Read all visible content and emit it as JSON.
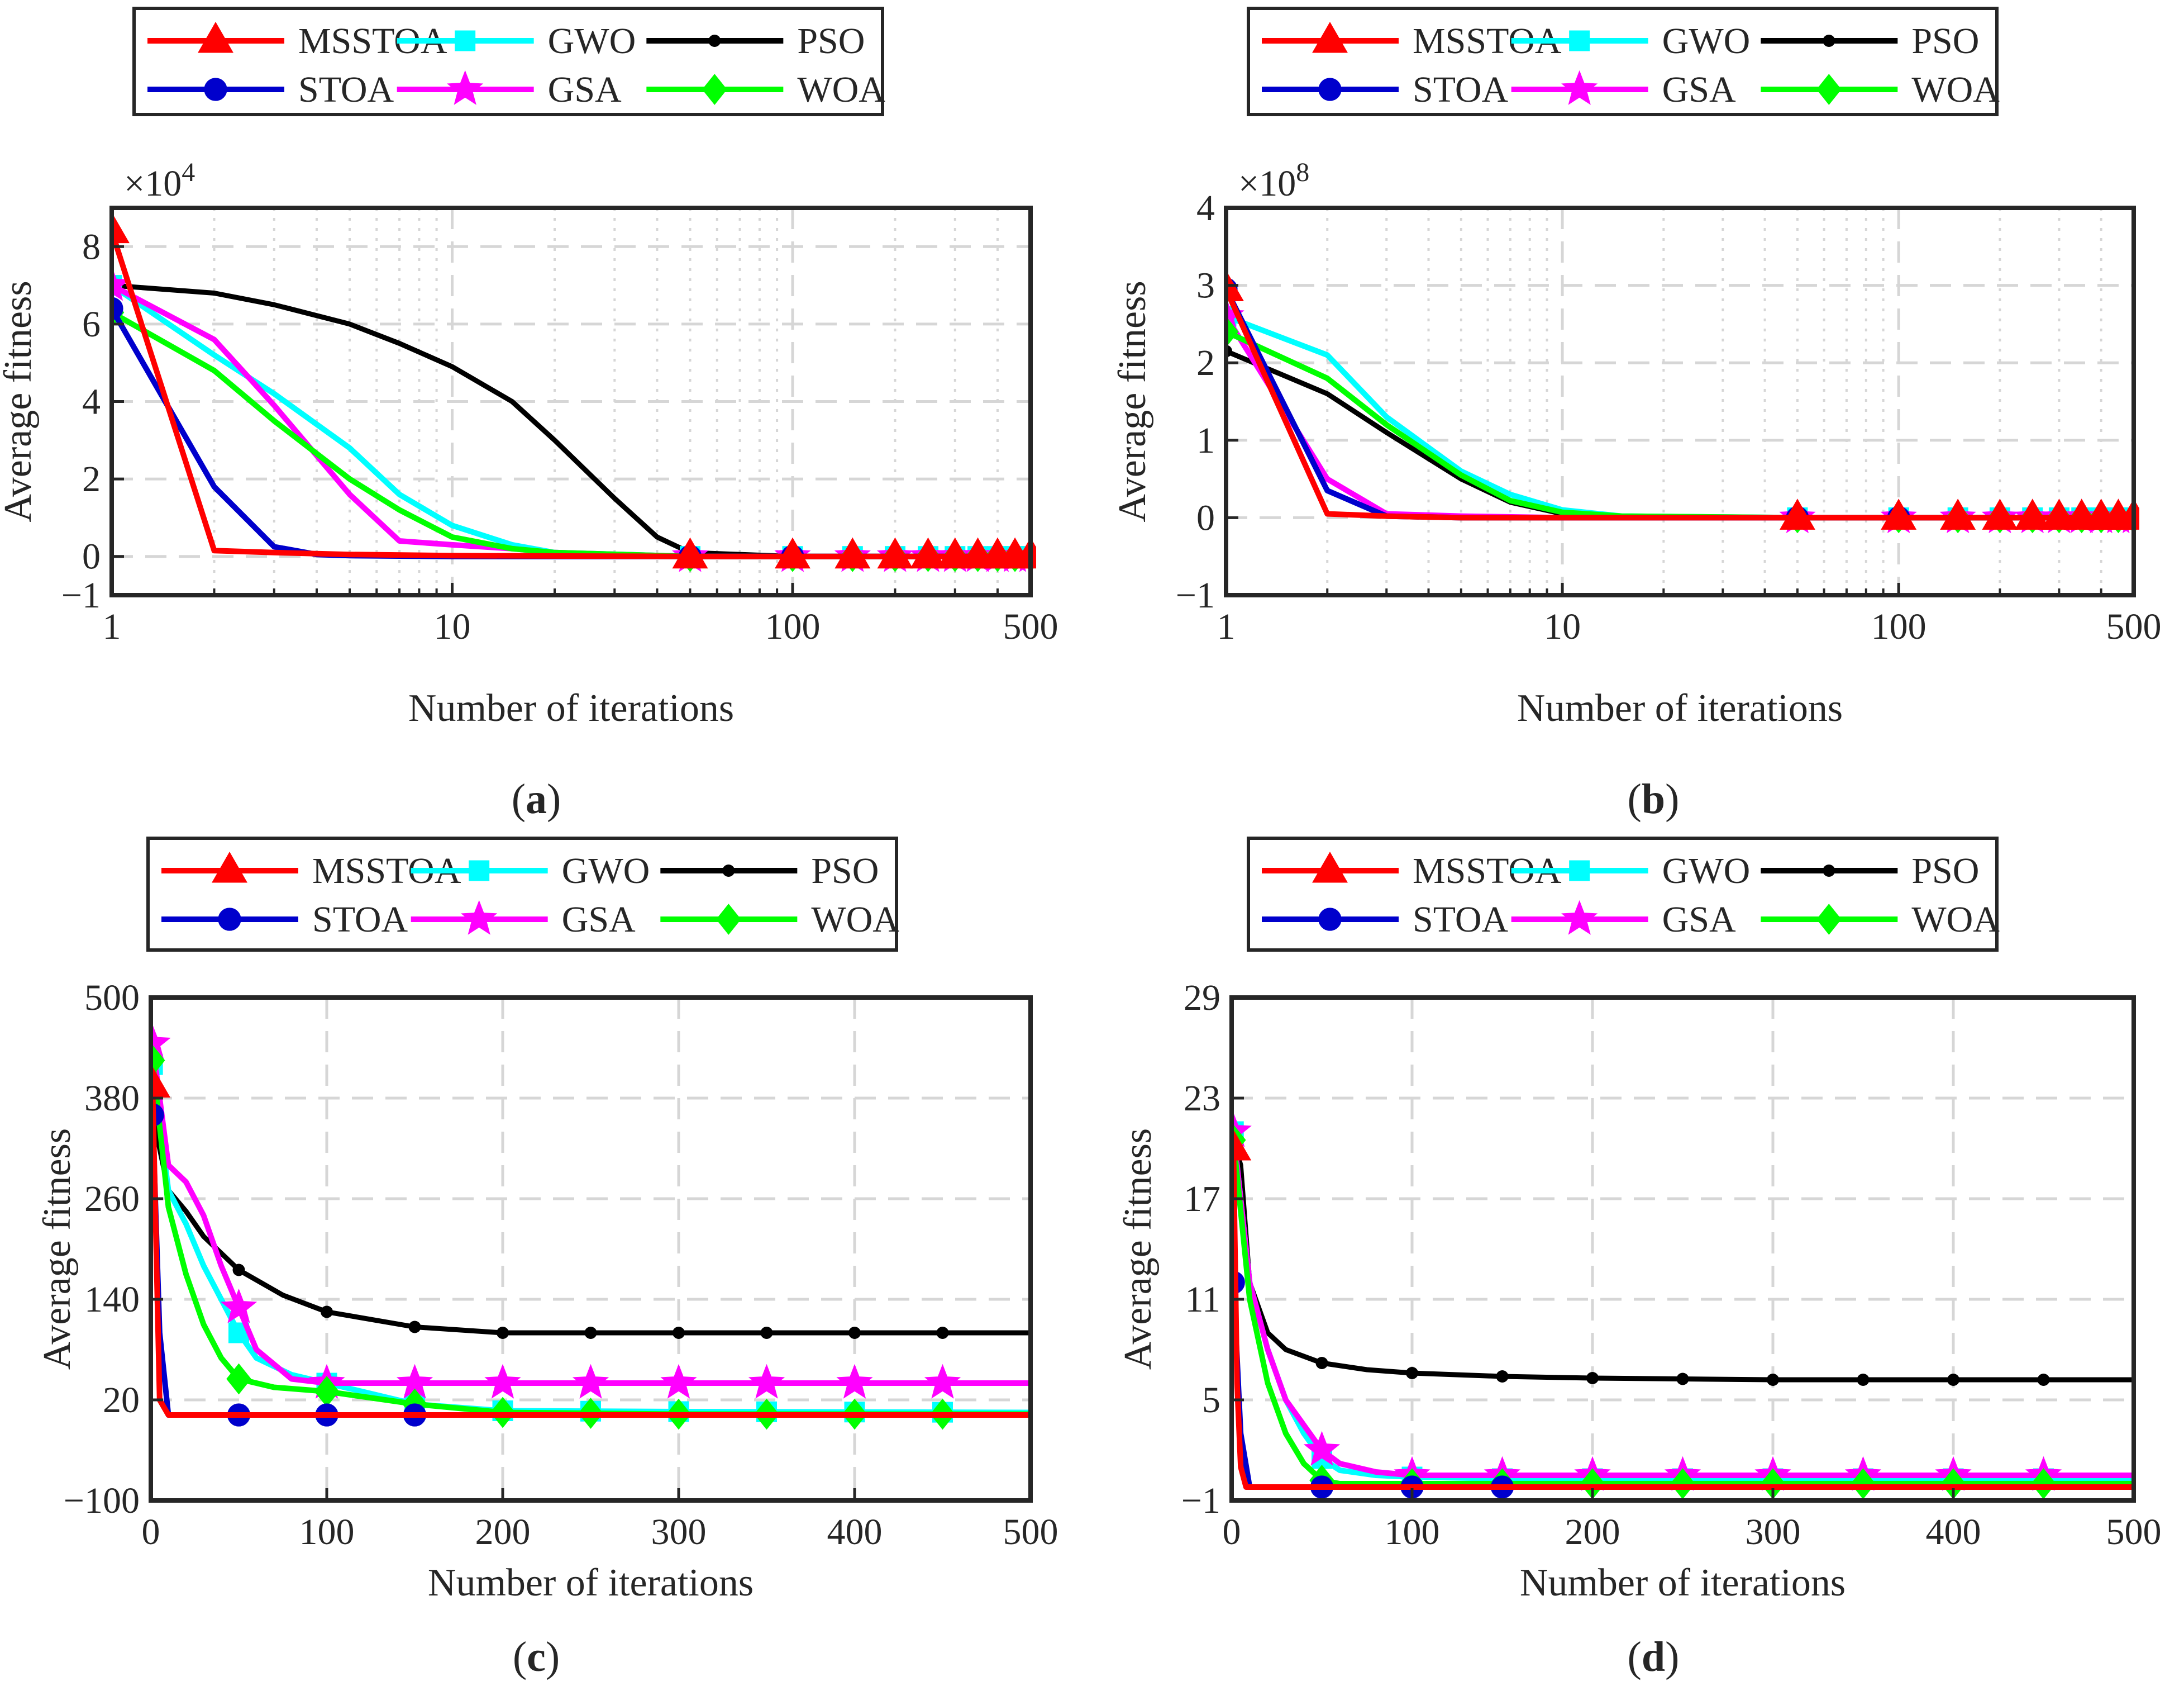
{
  "figure": {
    "panel_labels": [
      "a",
      "b",
      "c",
      "d"
    ]
  },
  "colors": {
    "MSSTOA": "#ff0000",
    "STOA": "#0000cc",
    "GWO": "#00ffff",
    "GSA": "#ff00ff",
    "PSO": "#000000",
    "WOA": "#00ff00",
    "grid": "#d6d6d6"
  },
  "chart_data": [
    {
      "type": "line",
      "panel": "a",
      "xlabel": "Number of iterations",
      "ylabel": "Average fitness",
      "xscale": "log",
      "xlim": [
        1,
        500
      ],
      "ylim": [
        -1,
        9
      ],
      "multiplier": "×10",
      "exponent": "4",
      "xticks": [
        1,
        10,
        100,
        500
      ],
      "xtick_labels": [
        "1",
        "10",
        "100",
        "500"
      ],
      "yticks": [
        -1,
        0,
        2,
        4,
        6,
        8
      ],
      "ytick_labels": [
        "−1",
        "0",
        "2",
        "4",
        "6",
        "8"
      ],
      "grid": true,
      "legend_position": "above",
      "series": [
        {
          "name": "MSSTOA",
          "marker": "triangle",
          "x": [
            1,
            2,
            3,
            5,
            10,
            50,
            100,
            200,
            500
          ],
          "y": [
            8.4,
            0.15,
            0.1,
            0.05,
            0.02,
            0.0,
            0.0,
            0.0,
            0.0
          ]
        },
        {
          "name": "STOA",
          "marker": "circle",
          "x": [
            1,
            2,
            3,
            4,
            5,
            10,
            50,
            100,
            500
          ],
          "y": [
            6.4,
            1.8,
            0.25,
            0.05,
            0.02,
            0.0,
            0.0,
            0.0,
            0.0
          ]
        },
        {
          "name": "GWO",
          "marker": "square",
          "x": [
            1,
            2,
            3,
            5,
            7,
            10,
            15,
            20,
            50,
            100,
            500
          ],
          "y": [
            7.0,
            5.2,
            4.2,
            2.8,
            1.6,
            0.8,
            0.3,
            0.1,
            0.0,
            0.0,
            0.0
          ]
        },
        {
          "name": "GSA",
          "marker": "star",
          "x": [
            1,
            2,
            3,
            5,
            7,
            10,
            15,
            20,
            50,
            100,
            500
          ],
          "y": [
            7.0,
            5.6,
            3.9,
            1.6,
            0.4,
            0.3,
            0.2,
            0.1,
            0.0,
            0.0,
            0.0
          ]
        },
        {
          "name": "PSO",
          "marker": "dot",
          "x": [
            1,
            2,
            3,
            5,
            7,
            10,
            15,
            20,
            30,
            40,
            50,
            100,
            500
          ],
          "y": [
            7.0,
            6.8,
            6.5,
            6.0,
            5.5,
            4.9,
            4.0,
            3.0,
            1.5,
            0.5,
            0.1,
            0.0,
            0.0
          ]
        },
        {
          "name": "WOA",
          "marker": "diamond",
          "x": [
            1,
            2,
            3,
            5,
            7,
            10,
            15,
            20,
            50,
            100,
            500
          ],
          "y": [
            6.3,
            4.8,
            3.5,
            2.0,
            1.2,
            0.5,
            0.2,
            0.1,
            0.0,
            0.0,
            0.0
          ]
        }
      ]
    },
    {
      "type": "line",
      "panel": "b",
      "xlabel": "Number of iterations",
      "ylabel": "Average fitness",
      "xscale": "log",
      "xlim": [
        1,
        500
      ],
      "ylim": [
        -1,
        4
      ],
      "multiplier": "×10",
      "exponent": "8",
      "xticks": [
        1,
        10,
        100,
        500
      ],
      "xtick_labels": [
        "1",
        "10",
        "100",
        "500"
      ],
      "yticks": [
        -1,
        0,
        1,
        2,
        3,
        4
      ],
      "ytick_labels": [
        "−1",
        "0",
        "1",
        "2",
        "3",
        "4"
      ],
      "grid": true,
      "legend_position": "above",
      "series": [
        {
          "name": "MSSTOA",
          "marker": "triangle",
          "x": [
            1,
            2,
            3,
            5,
            10,
            50,
            100,
            500
          ],
          "y": [
            2.95,
            0.05,
            0.02,
            0.0,
            0.0,
            0.0,
            0.0,
            0.0
          ]
        },
        {
          "name": "STOA",
          "marker": "circle",
          "x": [
            1,
            2,
            3,
            5,
            10,
            50,
            100,
            500
          ],
          "y": [
            2.95,
            0.35,
            0.02,
            0.0,
            0.0,
            0.0,
            0.0,
            0.0
          ]
        },
        {
          "name": "GWO",
          "marker": "square",
          "x": [
            1,
            2,
            3,
            5,
            7,
            10,
            15,
            50,
            100,
            500
          ],
          "y": [
            2.6,
            2.1,
            1.3,
            0.6,
            0.3,
            0.1,
            0.02,
            0.0,
            0.0,
            0.0
          ]
        },
        {
          "name": "GSA",
          "marker": "star",
          "x": [
            1,
            2,
            3,
            5,
            10,
            50,
            100,
            500
          ],
          "y": [
            2.6,
            0.5,
            0.05,
            0.02,
            0.0,
            0.0,
            0.0,
            0.0
          ]
        },
        {
          "name": "PSO",
          "marker": "dot",
          "x": [
            1,
            2,
            3,
            5,
            7,
            10,
            15,
            50,
            100,
            500
          ],
          "y": [
            2.15,
            1.6,
            1.1,
            0.5,
            0.2,
            0.05,
            0.01,
            0.0,
            0.0,
            0.0
          ]
        },
        {
          "name": "WOA",
          "marker": "diamond",
          "x": [
            1,
            2,
            3,
            5,
            7,
            10,
            15,
            50,
            100,
            500
          ],
          "y": [
            2.4,
            1.8,
            1.2,
            0.55,
            0.22,
            0.07,
            0.02,
            0.0,
            0.0,
            0.0
          ]
        }
      ]
    },
    {
      "type": "line",
      "panel": "c",
      "xlabel": "Number of iterations",
      "ylabel": "Average fitness",
      "xscale": "linear",
      "xlim": [
        0,
        500
      ],
      "ylim": [
        -100,
        500
      ],
      "xticks": [
        0,
        100,
        200,
        300,
        400,
        500
      ],
      "xtick_labels": [
        "0",
        "100",
        "200",
        "300",
        "400",
        "500"
      ],
      "yticks": [
        -100,
        20,
        140,
        260,
        380,
        500
      ],
      "ytick_labels": [
        "−100",
        "20",
        "140",
        "260",
        "380",
        "500"
      ],
      "grid": true,
      "legend_position": "above",
      "series": [
        {
          "name": "MSSTOA",
          "marker": "triangle",
          "x": [
            1,
            5,
            10,
            50,
            100,
            200,
            500
          ],
          "y": [
            395,
            20,
            2,
            2,
            2,
            2,
            2
          ]
        },
        {
          "name": "STOA",
          "marker": "circle",
          "x": [
            1,
            5,
            10,
            50,
            100,
            200,
            500
          ],
          "y": [
            360,
            100,
            2,
            2,
            2,
            2,
            2
          ]
        },
        {
          "name": "GWO",
          "marker": "square",
          "x": [
            1,
            10,
            20,
            30,
            40,
            50,
            60,
            80,
            100,
            150,
            200,
            300,
            500
          ],
          "y": [
            420,
            270,
            230,
            180,
            140,
            100,
            70,
            50,
            40,
            15,
            7,
            6,
            5
          ]
        },
        {
          "name": "GSA",
          "marker": "star",
          "x": [
            1,
            10,
            20,
            30,
            40,
            50,
            60,
            80,
            100,
            150,
            200,
            300,
            500
          ],
          "y": [
            445,
            300,
            280,
            240,
            180,
            130,
            80,
            45,
            40,
            40,
            40,
            40,
            40
          ]
        },
        {
          "name": "PSO",
          "marker": "dot",
          "x": [
            1,
            10,
            20,
            30,
            50,
            75,
            100,
            150,
            200,
            300,
            500
          ],
          "y": [
            360,
            270,
            245,
            215,
            175,
            145,
            125,
            107,
            100,
            100,
            100
          ]
        },
        {
          "name": "WOA",
          "marker": "diamond",
          "x": [
            1,
            10,
            20,
            30,
            40,
            50,
            70,
            100,
            150,
            200,
            300,
            500
          ],
          "y": [
            425,
            250,
            170,
            110,
            70,
            45,
            35,
            30,
            15,
            5,
            3,
            3
          ]
        }
      ]
    },
    {
      "type": "line",
      "panel": "d",
      "xlabel": "Number of iterations",
      "ylabel": "Average fitness",
      "xscale": "linear",
      "xlim": [
        0,
        500
      ],
      "ylim": [
        -1,
        29
      ],
      "xticks": [
        0,
        100,
        200,
        300,
        400,
        500
      ],
      "xtick_labels": [
        "0",
        "100",
        "200",
        "300",
        "400",
        "500"
      ],
      "yticks": [
        -1,
        5,
        11,
        17,
        23,
        29
      ],
      "ytick_labels": [
        "−1",
        "5",
        "11",
        "17",
        "23",
        "29"
      ],
      "grid": true,
      "legend_position": "above",
      "series": [
        {
          "name": "MSSTOA",
          "marker": "triangle",
          "x": [
            1,
            3,
            5,
            8,
            50,
            500
          ],
          "y": [
            20,
            6,
            1,
            -0.2,
            -0.2,
            -0.2
          ]
        },
        {
          "name": "STOA",
          "marker": "circle",
          "x": [
            1,
            5,
            10,
            20,
            50,
            500
          ],
          "y": [
            12,
            3,
            -0.2,
            -0.2,
            -0.2,
            -0.2
          ]
        },
        {
          "name": "GWO",
          "marker": "square",
          "x": [
            1,
            10,
            20,
            30,
            40,
            50,
            60,
            80,
            100,
            150,
            200,
            500
          ],
          "y": [
            21,
            12,
            8,
            5,
            3,
            1.5,
            0.8,
            0.5,
            0.4,
            0.3,
            0.3,
            0.3
          ]
        },
        {
          "name": "GSA",
          "marker": "star",
          "x": [
            1,
            10,
            20,
            30,
            40,
            50,
            60,
            80,
            100,
            150,
            200,
            500
          ],
          "y": [
            21,
            12,
            8,
            5,
            3.5,
            2,
            1.2,
            0.7,
            0.5,
            0.5,
            0.5,
            0.5
          ]
        },
        {
          "name": "PSO",
          "marker": "dot",
          "x": [
            1,
            5,
            10,
            20,
            30,
            50,
            75,
            100,
            150,
            200,
            300,
            500
          ],
          "y": [
            20.5,
            19,
            12,
            9,
            8,
            7.2,
            6.8,
            6.6,
            6.4,
            6.3,
            6.2,
            6.2
          ]
        },
        {
          "name": "WOA",
          "marker": "diamond",
          "x": [
            1,
            10,
            20,
            30,
            40,
            50,
            60,
            100,
            150,
            200,
            500
          ],
          "y": [
            20.5,
            11,
            6,
            3,
            1.2,
            0.2,
            0,
            0,
            0,
            0,
            0
          ]
        }
      ]
    }
  ]
}
